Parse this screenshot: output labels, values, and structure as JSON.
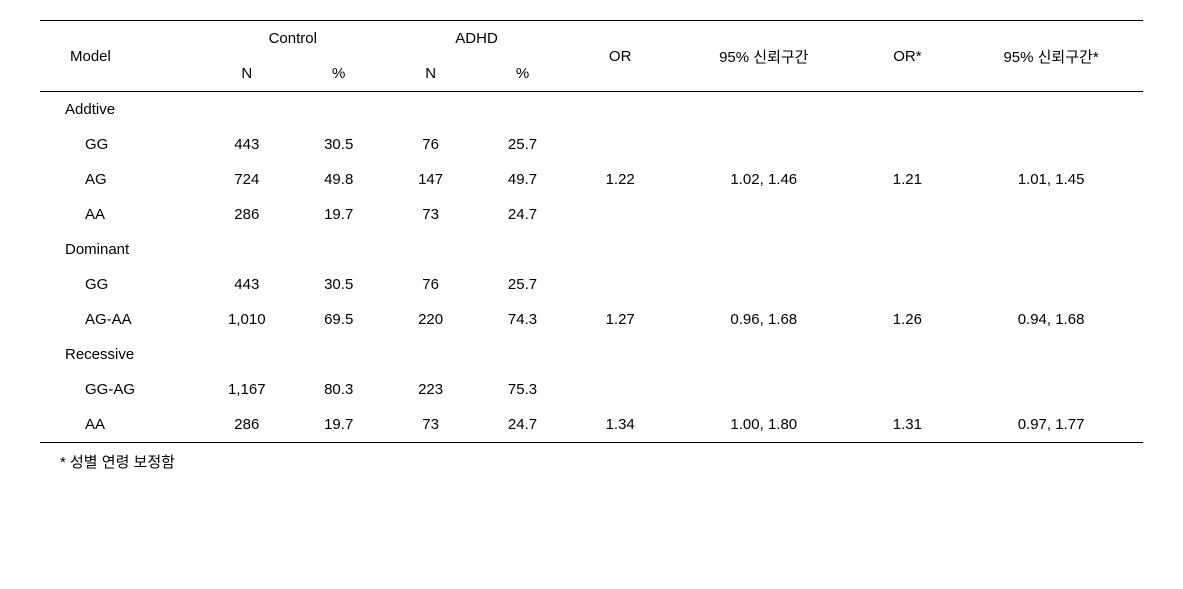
{
  "headers": {
    "model": "Model",
    "control": "Control",
    "adhd": "ADHD",
    "n": "N",
    "pct": "%",
    "or": "OR",
    "ci": "95% 신뢰구간",
    "or_adj": "OR*",
    "ci_adj": "95% 신뢰구간*"
  },
  "groups": [
    {
      "name": "Addtive",
      "rows": [
        {
          "label": "GG",
          "control_n": "443",
          "control_pct": "30.5",
          "adhd_n": "76",
          "adhd_pct": "25.7",
          "or": "",
          "ci": "",
          "or_adj": "",
          "ci_adj": ""
        },
        {
          "label": "AG",
          "control_n": "724",
          "control_pct": "49.8",
          "adhd_n": "147",
          "adhd_pct": "49.7",
          "or": "1.22",
          "ci": "1.02, 1.46",
          "or_adj": "1.21",
          "ci_adj": "1.01, 1.45"
        },
        {
          "label": "AA",
          "control_n": "286",
          "control_pct": "19.7",
          "adhd_n": "73",
          "adhd_pct": "24.7",
          "or": "",
          "ci": "",
          "or_adj": "",
          "ci_adj": ""
        }
      ]
    },
    {
      "name": "Dominant",
      "rows": [
        {
          "label": "GG",
          "control_n": "443",
          "control_pct": "30.5",
          "adhd_n": "76",
          "adhd_pct": "25.7",
          "or": "",
          "ci": "",
          "or_adj": "",
          "ci_adj": ""
        },
        {
          "label": "AG-AA",
          "control_n": "1,010",
          "control_pct": "69.5",
          "adhd_n": "220",
          "adhd_pct": "74.3",
          "or": "1.27",
          "ci": "0.96, 1.68",
          "or_adj": "1.26",
          "ci_adj": "0.94, 1.68"
        }
      ]
    },
    {
      "name": "Recessive",
      "rows": [
        {
          "label": "GG-AG",
          "control_n": "1,167",
          "control_pct": "80.3",
          "adhd_n": "223",
          "adhd_pct": "75.3",
          "or": "",
          "ci": "",
          "or_adj": "",
          "ci_adj": ""
        },
        {
          "label": "AA",
          "control_n": "286",
          "control_pct": "19.7",
          "adhd_n": "73",
          "adhd_pct": "24.7",
          "or": "1.34",
          "ci": "1.00, 1.80",
          "or_adj": "1.31",
          "ci_adj": "0.97, 1.77"
        }
      ]
    }
  ],
  "footnote": "* 성별 연령 보정함",
  "styling": {
    "background_color": "#ffffff",
    "text_color": "#000000",
    "border_color": "#000000",
    "font_size_body": 15,
    "font_family": "Malgun Gothic"
  }
}
